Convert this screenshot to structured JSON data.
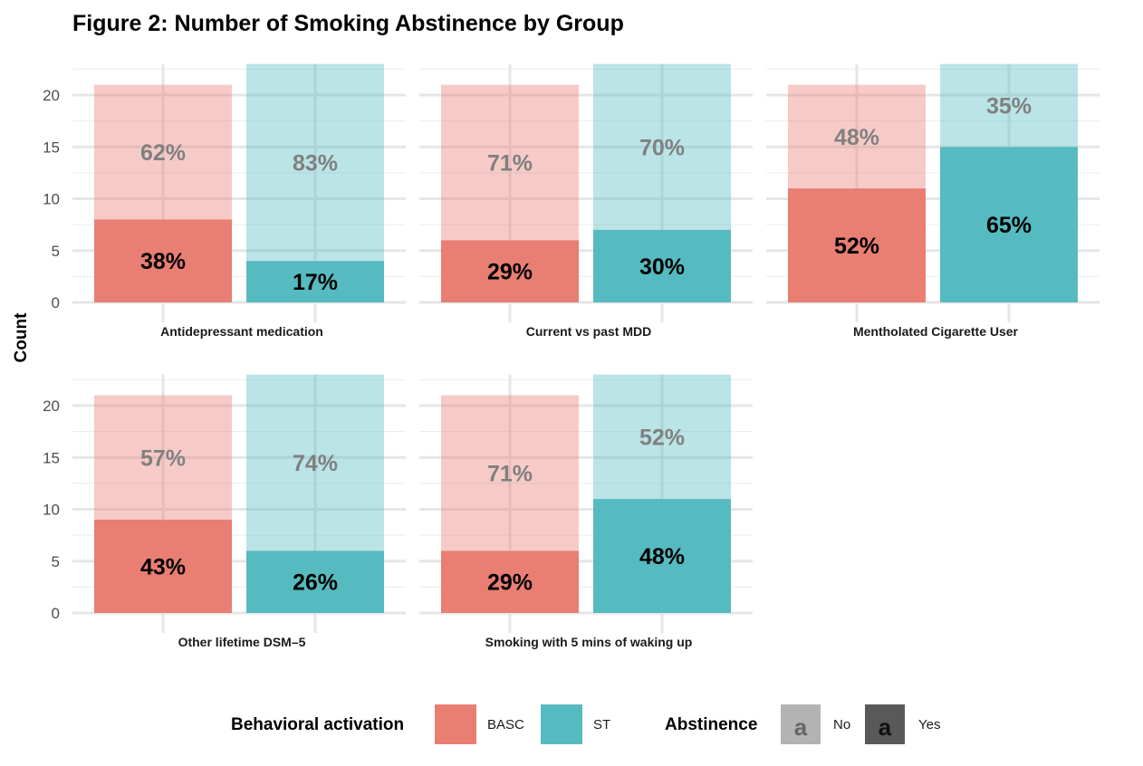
{
  "title": "Figure 2: Number of Smoking Abstinence by Group",
  "chart_data": {
    "type": "bar",
    "title": "Figure 2: Number of Smoking Abstinence by Group",
    "ylabel": "Count",
    "xlabel": "",
    "ylim": [
      0,
      23
    ],
    "yticks": [
      "0",
      "5",
      "10",
      "15",
      "20"
    ],
    "stacking": "stacked",
    "series_colors": {
      "BASC": "#e97e73",
      "ST": "#56bbc0"
    },
    "no_alpha": 0.4,
    "grid": true,
    "panels": [
      {
        "name": "Antidepressant medication",
        "bars": [
          {
            "group": "BASC",
            "yes": 8,
            "total": 21,
            "yes_label": "38%",
            "no_label": "62%"
          },
          {
            "group": "ST",
            "yes": 4,
            "total": 23,
            "yes_label": "17%",
            "no_label": "83%"
          }
        ]
      },
      {
        "name": "Current vs past MDD",
        "bars": [
          {
            "group": "BASC",
            "yes": 6,
            "total": 21,
            "yes_label": "29%",
            "no_label": "71%"
          },
          {
            "group": "ST",
            "yes": 7,
            "total": 23,
            "yes_label": "30%",
            "no_label": "70%"
          }
        ]
      },
      {
        "name": "Mentholated Cigarette User",
        "bars": [
          {
            "group": "BASC",
            "yes": 11,
            "total": 21,
            "yes_label": "52%",
            "no_label": "48%"
          },
          {
            "group": "ST",
            "yes": 15,
            "total": 23,
            "yes_label": "65%",
            "no_label": "35%"
          }
        ]
      },
      {
        "name": "Other lifetime DSM–5",
        "bars": [
          {
            "group": "BASC",
            "yes": 9,
            "total": 21,
            "yes_label": "43%",
            "no_label": "57%"
          },
          {
            "group": "ST",
            "yes": 6,
            "total": 23,
            "yes_label": "26%",
            "no_label": "74%"
          }
        ]
      },
      {
        "name": "Smoking with 5 mins of waking up",
        "bars": [
          {
            "group": "BASC",
            "yes": 6,
            "total": 21,
            "yes_label": "29%",
            "no_label": "71%"
          },
          {
            "group": "ST",
            "yes": 11,
            "total": 23,
            "yes_label": "48%",
            "no_label": "52%"
          }
        ]
      }
    ]
  },
  "legend": {
    "fill_title": "Behavioral activation",
    "fill_items": [
      {
        "label": "BASC",
        "color": "#e97e73"
      },
      {
        "label": "ST",
        "color": "#56bbc0"
      }
    ],
    "alpha_title": "Abstinence",
    "alpha_items": [
      {
        "label": "No",
        "glyph": "a",
        "color": "#b3b3b3"
      },
      {
        "label": "Yes",
        "glyph": "a",
        "color": "#595959"
      }
    ]
  }
}
